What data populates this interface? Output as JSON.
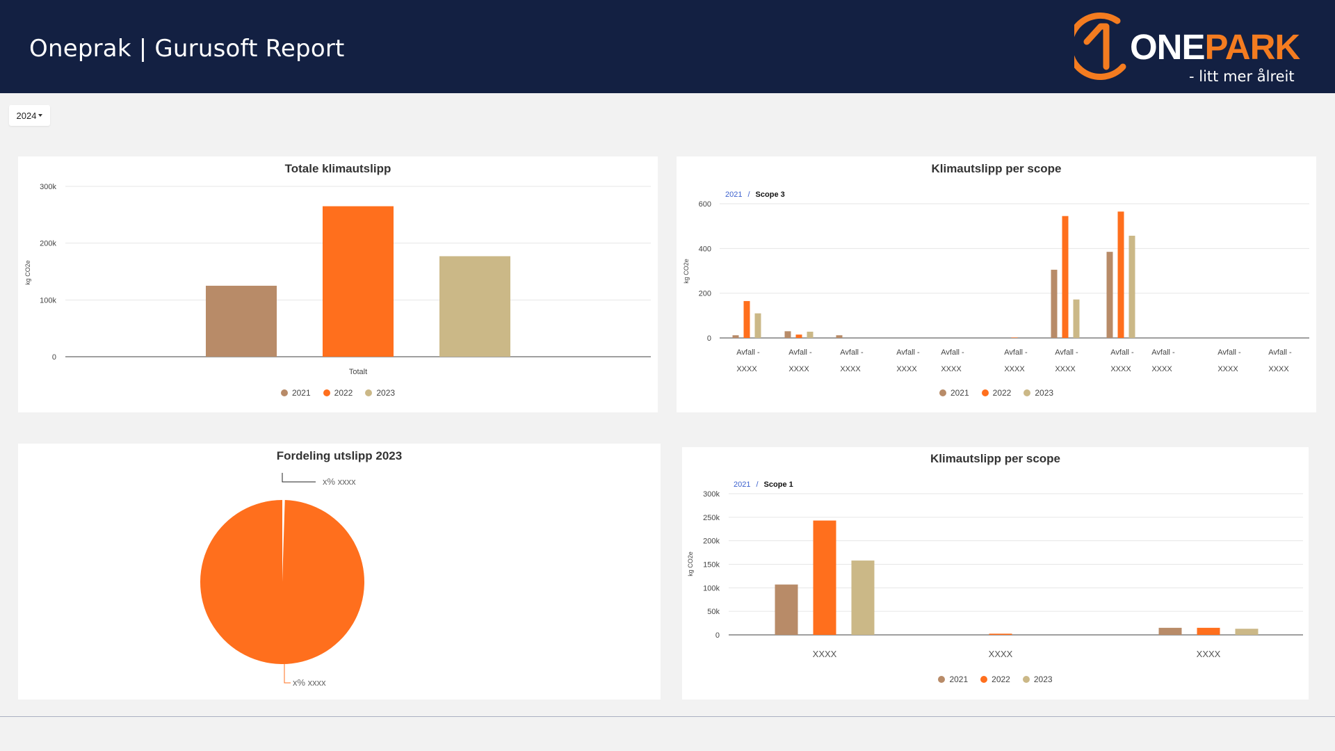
{
  "header": {
    "title": "Oneprak | Gurusoft Report",
    "logo": {
      "word_a": "ONE",
      "word_b": "PARK",
      "tagline": "- litt mer ålreit",
      "icon": "onepark-logo-icon"
    }
  },
  "filter": {
    "year": "2024"
  },
  "colors": {
    "y2021": "#b88b68",
    "y2022": "#ff6f1d",
    "y2023": "#cbb887",
    "header_bg": "#132042",
    "brand_orange": "#f47c20"
  },
  "legend": [
    "2021",
    "2022",
    "2023"
  ],
  "charts": {
    "total": {
      "title": "Totale klimautslipp",
      "ylabel": "kg CO2e",
      "yticks": [
        "300k",
        "200k",
        "100k",
        "0"
      ],
      "category": "Totalt"
    },
    "scope3": {
      "title": "Klimautslipp per scope",
      "crumb_link": "2021",
      "crumb_sep": "/",
      "crumb_current": "Scope 3",
      "ylabel": "kg CO2e",
      "yticks": [
        "600",
        "400",
        "200",
        "0"
      ],
      "label_line1": "Avfall -",
      "label_line2": "XXXX"
    },
    "pie": {
      "title": "Fordeling utslipp 2023",
      "label_top": "x%  xxxx",
      "label_bottom": "x%  xxxx"
    },
    "scope1": {
      "title": "Klimautslipp per scope",
      "crumb_link": "2021",
      "crumb_sep": "/",
      "crumb_current": "Scope 1",
      "ylabel": "kg CO2e",
      "yticks": [
        "300k",
        "250k",
        "200k",
        "150k",
        "100k",
        "50k",
        "0"
      ],
      "categories": [
        "XXXX",
        "XXXX",
        "XXXX"
      ]
    }
  },
  "chart_data": [
    {
      "type": "bar",
      "title": "Totale klimautslipp",
      "ylabel": "kg CO2e",
      "ylim": [
        0,
        300000
      ],
      "categories": [
        "Totalt"
      ],
      "series": [
        {
          "name": "2021",
          "values": [
            125000
          ]
        },
        {
          "name": "2022",
          "values": [
            265000
          ]
        },
        {
          "name": "2023",
          "values": [
            177000
          ]
        }
      ],
      "legend": "bottom",
      "grid": true
    },
    {
      "type": "bar",
      "title": "Klimautslipp per scope",
      "ylabel": "kg CO2e",
      "ylim": [
        0,
        600
      ],
      "categories": [
        "Avfall - XXXX",
        "Avfall - XXXX",
        "Avfall - XXXX",
        "Avfall - XXXX",
        "Avfall - XXXX",
        "Avfall - XXXX",
        "Avfall - XXXX",
        "Avfall - XXXX",
        "Avfall - XXXX",
        "Avfall - XXXX",
        "Avfall - XXXX"
      ],
      "series": [
        {
          "name": "2021",
          "values": [
            12,
            30,
            12,
            0,
            0,
            0,
            305,
            385,
            0,
            0,
            0
          ]
        },
        {
          "name": "2022",
          "values": [
            165,
            15,
            0,
            0,
            0,
            2,
            545,
            565,
            0,
            0,
            0
          ]
        },
        {
          "name": "2023",
          "values": [
            110,
            28,
            0,
            0,
            0,
            0,
            172,
            457,
            0,
            0,
            0
          ]
        }
      ],
      "legend": "bottom",
      "grid": true
    },
    {
      "type": "pie",
      "title": "Fordeling utslipp 2023",
      "labels": [
        "xxxx",
        "xxxx"
      ],
      "values": [
        0.5,
        99.5
      ],
      "label_text": [
        "x%  xxxx",
        "x%  xxxx"
      ]
    },
    {
      "type": "bar",
      "title": "Klimautslipp per scope",
      "ylabel": "kg CO2e",
      "ylim": [
        0,
        300000
      ],
      "categories": [
        "XXXX",
        "XXXX",
        "XXXX"
      ],
      "series": [
        {
          "name": "2021",
          "values": [
            107000,
            0,
            15000
          ]
        },
        {
          "name": "2022",
          "values": [
            243000,
            2500,
            15000
          ]
        },
        {
          "name": "2023",
          "values": [
            158000,
            0,
            13000
          ]
        }
      ],
      "legend": "bottom",
      "grid": true
    }
  ]
}
